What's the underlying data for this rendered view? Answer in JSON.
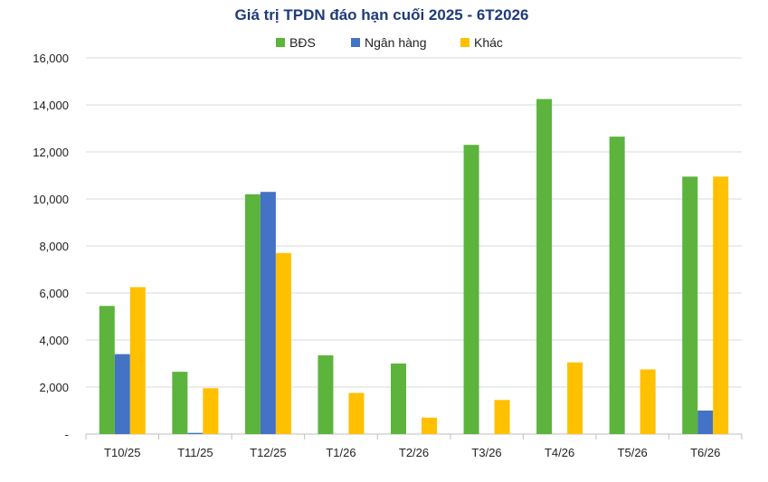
{
  "chart_data": {
    "type": "bar",
    "title": "Giá trị TPDN đáo hạn cuối 2025 - 6T2026",
    "xlabel": "",
    "ylabel": "",
    "ylim": [
      0,
      16000
    ],
    "yticks": [
      0,
      2000,
      4000,
      6000,
      8000,
      10000,
      12000,
      14000,
      16000
    ],
    "ytick_labels": [
      "-",
      "2,000",
      "4,000",
      "6,000",
      "8,000",
      "10,000",
      "12,000",
      "14,000",
      "16,000"
    ],
    "grid": true,
    "legend_position": "top-center",
    "categories": [
      "T10/25",
      "T11/25",
      "T12/25",
      "T1/26",
      "T2/26",
      "T3/26",
      "T4/26",
      "T5/26",
      "T6/26"
    ],
    "series": [
      {
        "name": "BĐS",
        "color": "#5cb43c",
        "values": [
          5450,
          2650,
          10200,
          3350,
          3000,
          12300,
          14250,
          12650,
          10950
        ]
      },
      {
        "name": "Ngân hàng",
        "color": "#4472c4",
        "values": [
          3400,
          50,
          10300,
          0,
          0,
          0,
          0,
          0,
          1000
        ]
      },
      {
        "name": "Khác",
        "color": "#ffc000",
        "values": [
          6250,
          1950,
          7700,
          1750,
          700,
          1450,
          3050,
          2750,
          10950
        ]
      }
    ]
  }
}
